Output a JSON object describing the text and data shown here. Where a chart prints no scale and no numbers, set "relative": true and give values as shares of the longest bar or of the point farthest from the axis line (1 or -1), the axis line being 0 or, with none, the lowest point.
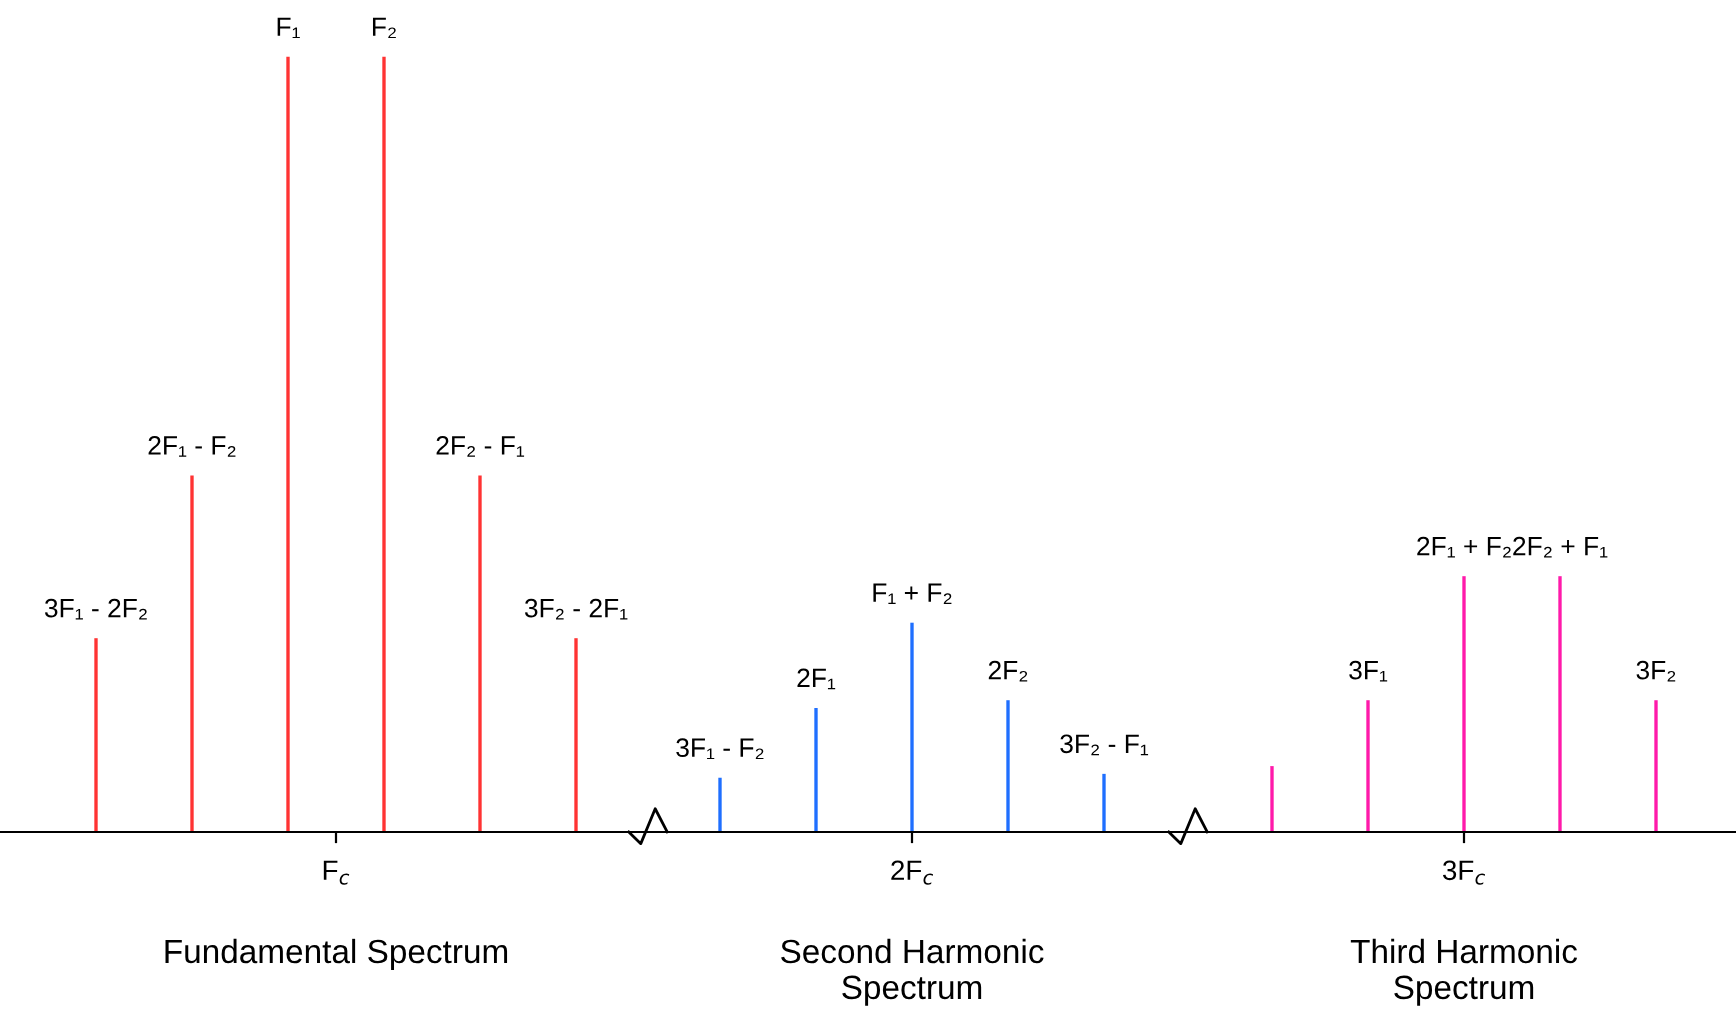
{
  "chart_data": {
    "type": "bar",
    "relative": true,
    "grid": false,
    "categories": [
      "3F₁ - 2F₂",
      null,
      null,
      null,
      "2F₁ - F₂",
      null,
      null,
      null,
      "F₁",
      null,
      null,
      null,
      "F₂",
      null,
      null,
      null,
      "2F₂ - F₁",
      null,
      null,
      null,
      "3F₂ - 2F₁",
      null,
      null,
      null,
      null,
      null,
      "3F₁ - F₂",
      null,
      null,
      null,
      "2F₁",
      null,
      null,
      null,
      "F₁ + F₂",
      null,
      null,
      null,
      "2F₂",
      null,
      null,
      null,
      "3F₂ - F₁",
      null,
      null,
      null,
      null,
      null,
      null,
      null,
      null,
      null,
      null,
      "3F₁",
      null,
      null,
      null,
      "2F₁ + F₂",
      null,
      null,
      null,
      "2F₂ + F₁",
      null,
      null,
      null,
      "3F₂",
      null,
      null,
      null
    ],
    "series": [
      {
        "color": "#ff3333",
        "values": [
          0.25,
          null,
          null,
          null,
          0.46,
          null,
          null,
          null,
          1,
          null,
          null,
          null,
          1,
          null,
          null,
          null,
          0.46,
          null,
          null,
          null,
          0.25,
          null,
          null,
          null,
          null,
          null,
          null,
          null,
          null,
          null,
          null,
          null,
          null,
          null,
          null,
          null,
          null,
          null,
          null,
          null,
          null,
          null,
          null,
          null,
          null,
          null,
          null,
          null,
          null,
          null,
          null,
          null,
          null,
          null,
          null,
          null,
          null,
          null,
          null,
          null,
          null,
          null,
          null,
          null,
          null,
          null,
          null,
          null,
          null
        ]
      },
      {
        "color": "#1f6fff",
        "values": [
          null,
          null,
          null,
          null,
          null,
          null,
          null,
          null,
          null,
          null,
          null,
          null,
          null,
          null,
          null,
          null,
          null,
          null,
          null,
          null,
          null,
          null,
          null,
          null,
          null,
          null,
          0.07,
          null,
          null,
          null,
          0.16,
          null,
          null,
          null,
          0.27,
          null,
          null,
          null,
          0.17,
          null,
          null,
          null,
          0.075,
          null,
          null,
          null,
          null,
          null,
          null,
          null,
          null,
          null,
          null,
          null,
          null,
          null,
          null,
          null,
          null,
          null,
          null,
          null,
          null,
          null,
          null,
          null,
          null,
          null,
          null
        ]
      },
      {
        "color": "#ff1aaa",
        "values": [
          null,
          null,
          null,
          null,
          null,
          null,
          null,
          null,
          null,
          null,
          null,
          null,
          null,
          null,
          null,
          null,
          null,
          null,
          null,
          null,
          null,
          null,
          null,
          null,
          null,
          null,
          null,
          null,
          null,
          null,
          null,
          null,
          null,
          null,
          null,
          null,
          null,
          null,
          null,
          null,
          null,
          null,
          null,
          null,
          null,
          null,
          null,
          null,
          null,
          0.085,
          null,
          null,
          null,
          0.17,
          null,
          null,
          null,
          0.33,
          null,
          null,
          null,
          0.33,
          null,
          null,
          null,
          0.17,
          null,
          null,
          null
        ]
      }
    ],
    "annotations": [
      "F$_{c}$",
      "2F$_{c}$",
      "3F$_{c}$",
      "Fundamental Spectrum",
      "Second Harmonic\nSpectrum",
      "Third Harmonic\nSpectrum"
    ]
  }
}
